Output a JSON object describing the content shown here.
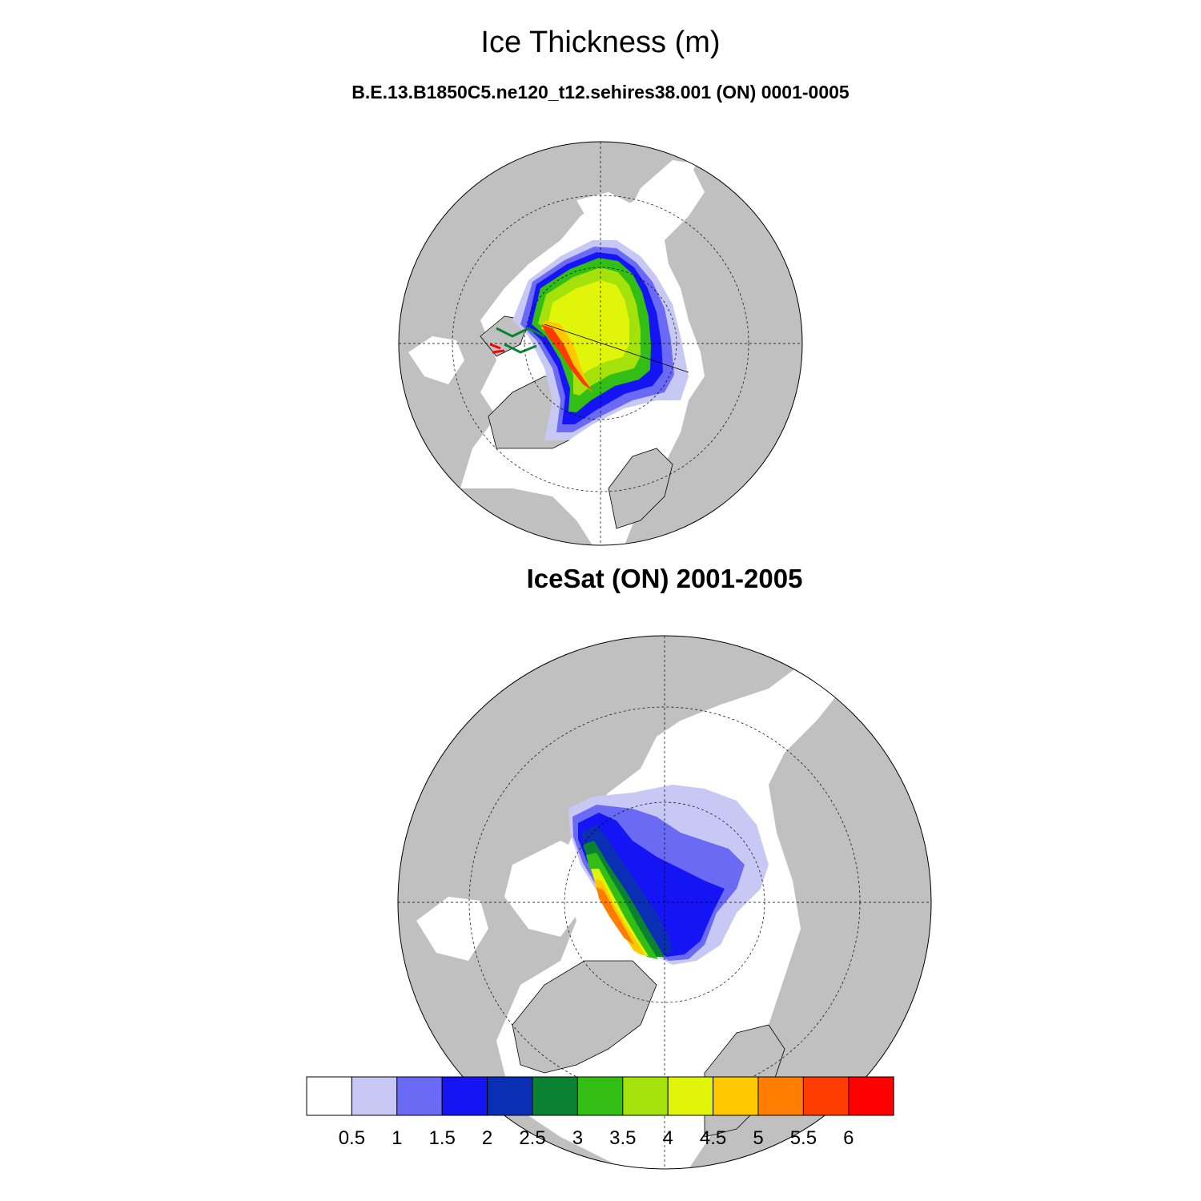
{
  "title": "Ice Thickness (m)",
  "panels": [
    {
      "subtitle": "B.E.13.B1850C5.ne120_t12.sehires38.001 (ON) 0001-0005"
    },
    {
      "subtitle": "IceSat (ON) 2001-2005"
    }
  ],
  "colorbar": {
    "colors": [
      "#ffffff",
      "#c8c8f5",
      "#6a6af5",
      "#1414f5",
      "#0a2eb4",
      "#0a8232",
      "#32be14",
      "#a5e10a",
      "#e1f50a",
      "#ffc800",
      "#ff7d00",
      "#ff3c00",
      "#ff0000"
    ],
    "labels": [
      "0.5",
      "1",
      "1.5",
      "2",
      "2.5",
      "3",
      "3.5",
      "4",
      "4.5",
      "5",
      "5.5",
      "6"
    ]
  },
  "colors": {
    "land": "#c0c0c0",
    "ocean": "#ffffff",
    "outline": "#000000"
  }
}
